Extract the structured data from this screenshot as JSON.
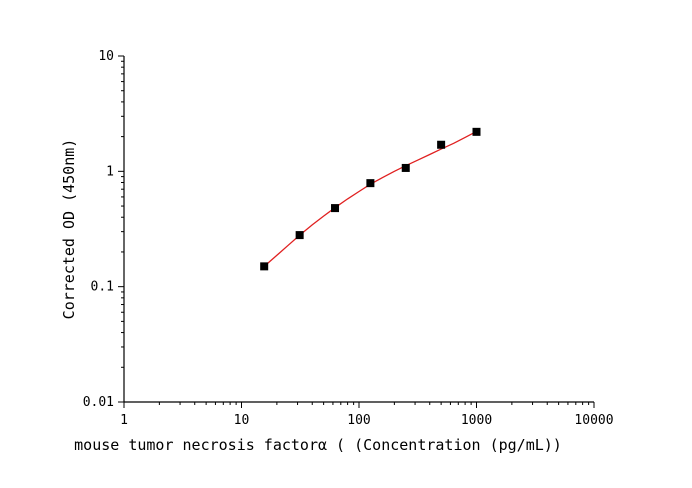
{
  "chart_data": {
    "type": "scatter",
    "title": "",
    "xlabel": "mouse tumor necrosis factorα ( (Concentration (pg/mL))",
    "ylabel": "Corrected OD (450nm)",
    "x_scale": "log",
    "y_scale": "log",
    "xlim": [
      1,
      10000
    ],
    "ylim": [
      0.01,
      10
    ],
    "x_ticks": [
      1,
      10,
      100,
      1000,
      10000
    ],
    "x_tick_labels": [
      "1",
      "10",
      "100",
      "1000",
      "10000"
    ],
    "y_ticks": [
      0.01,
      0.1,
      1,
      10
    ],
    "y_tick_labels": [
      "0.01",
      "0.1",
      "1",
      "10"
    ],
    "grid": false,
    "legend": "none",
    "series": [
      {
        "marker": "square",
        "color": "#000000",
        "x": [
          15.6,
          31.25,
          62.5,
          125,
          250,
          500,
          1000
        ],
        "y": [
          0.15,
          0.28,
          0.48,
          0.79,
          1.07,
          1.7,
          2.2
        ]
      }
    ],
    "fit_curve": {
      "color": "#e02020",
      "x": [
        15.6,
        20,
        25,
        31.25,
        40,
        50,
        62.5,
        80,
        100,
        125,
        160,
        200,
        250,
        320,
        400,
        500,
        640,
        800,
        1000
      ],
      "y": [
        0.15,
        0.187,
        0.229,
        0.279,
        0.343,
        0.409,
        0.484,
        0.577,
        0.669,
        0.773,
        0.888,
        1.0,
        1.12,
        1.26,
        1.4,
        1.56,
        1.75,
        1.97,
        2.22
      ]
    }
  }
}
